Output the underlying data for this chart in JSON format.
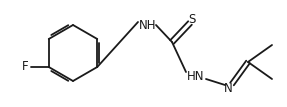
{
  "background": "#ffffff",
  "line_color": "#1a1a1a",
  "line_width": 1.3,
  "font_size": 8.5,
  "figsize": [
    2.87,
    1.07
  ],
  "dpi": 100,
  "labels": {
    "F": "F",
    "NH_bottom": "NH",
    "H_bottom": "H",
    "S": "S",
    "HN": "HN",
    "N": "N"
  }
}
